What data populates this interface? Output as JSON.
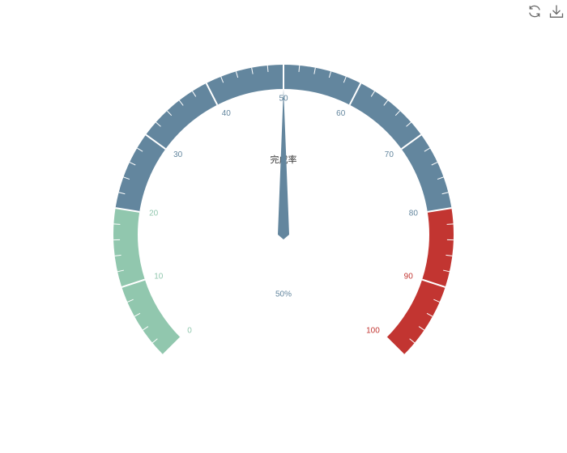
{
  "toolbox": {
    "restore_icon": "restore-icon",
    "download_icon": "download-icon"
  },
  "chart_data": {
    "type": "gauge",
    "name": "完成率",
    "value": 50,
    "detail": "50%",
    "min": 0,
    "max": 100,
    "tick_labels": [
      "0",
      "10",
      "20",
      "30",
      "40",
      "50",
      "60",
      "70",
      "80",
      "90",
      "100"
    ],
    "bands": [
      {
        "to": 0.2,
        "color": "#91c7ae"
      },
      {
        "to": 0.8,
        "color": "#63869e"
      },
      {
        "to": 1.0,
        "color": "#c23531"
      }
    ]
  }
}
